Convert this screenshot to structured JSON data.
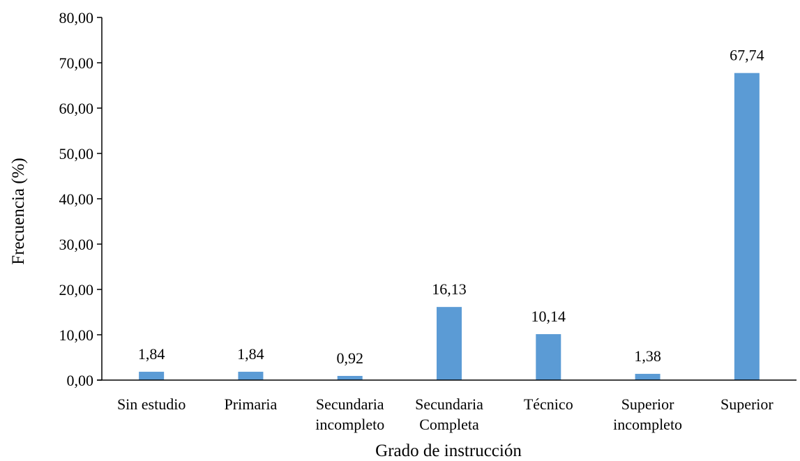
{
  "chart_data": {
    "type": "bar",
    "title": "",
    "xlabel": "Grado de instrucción",
    "ylabel": "Frecuencia (%)",
    "ylim": [
      0,
      80
    ],
    "yticks": [
      "0,00",
      "10,00",
      "20,00",
      "30,00",
      "40,00",
      "50,00",
      "60,00",
      "70,00",
      "80,00"
    ],
    "grid": false,
    "legend": "none",
    "bar_color": "#5B9BD5",
    "categories": [
      [
        "Sin estudio"
      ],
      [
        "Primaria"
      ],
      [
        "Secundaria",
        "incompleto"
      ],
      [
        "Secundaria",
        "Completa"
      ],
      [
        "Técnico"
      ],
      [
        "Superior",
        "incompleto"
      ],
      [
        "Superior"
      ]
    ],
    "values": [
      1.84,
      1.84,
      0.92,
      16.13,
      10.14,
      1.38,
      67.74
    ],
    "value_labels": [
      "1,84",
      "1,84",
      "0,92",
      "16,13",
      "10,14",
      "1,38",
      "67,74"
    ]
  }
}
